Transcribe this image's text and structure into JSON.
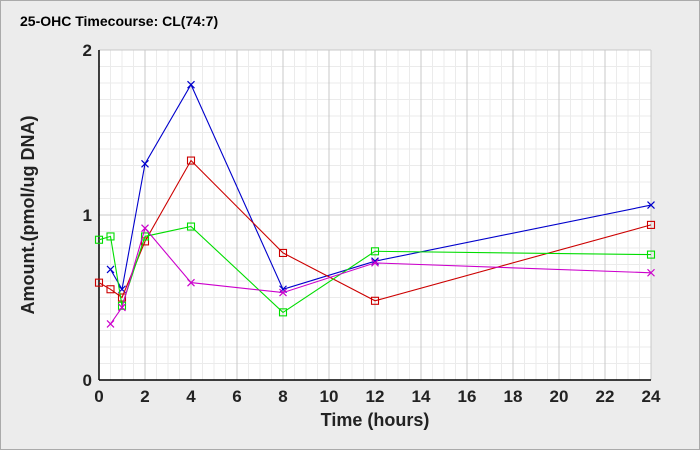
{
  "chart_data": {
    "type": "line",
    "title": "25-OHC Timecourse: CL(74:7)",
    "xlabel": "Time (hours)",
    "ylabel": "Amount.(pmol/ug DNA)",
    "xlim": [
      0,
      24
    ],
    "ylim": [
      0,
      2
    ],
    "x_ticks": [
      "0",
      "2",
      "4",
      "6",
      "8",
      "10",
      "12",
      "14",
      "16",
      "18",
      "20",
      "22",
      "24"
    ],
    "y_ticks": [
      "0",
      "1",
      "2"
    ],
    "grid": true,
    "legend": "none",
    "series": [
      {
        "color": "#0000cc",
        "marker": "x",
        "x": [
          0.5,
          1,
          2,
          4,
          8,
          12,
          24
        ],
        "y": [
          0.67,
          0.55,
          1.31,
          1.79,
          0.55,
          0.72,
          1.06
        ]
      },
      {
        "color": "#cc0000",
        "marker": "square",
        "x": [
          0,
          0.5,
          1,
          2,
          4,
          8,
          12,
          24
        ],
        "y": [
          0.59,
          0.55,
          0.5,
          0.84,
          1.33,
          0.77,
          0.48,
          0.94
        ]
      },
      {
        "color": "#00dd00",
        "marker": "square",
        "x": [
          0,
          0.5,
          1,
          2,
          4,
          8,
          12,
          24
        ],
        "y": [
          0.85,
          0.87,
          0.45,
          0.87,
          0.93,
          0.41,
          0.78,
          0.76
        ]
      },
      {
        "color": "#cc00cc",
        "marker": "x",
        "x": [
          0.5,
          1,
          2,
          4,
          8,
          12,
          24
        ],
        "y": [
          0.34,
          0.44,
          0.92,
          0.59,
          0.53,
          0.71,
          0.65
        ]
      }
    ]
  }
}
